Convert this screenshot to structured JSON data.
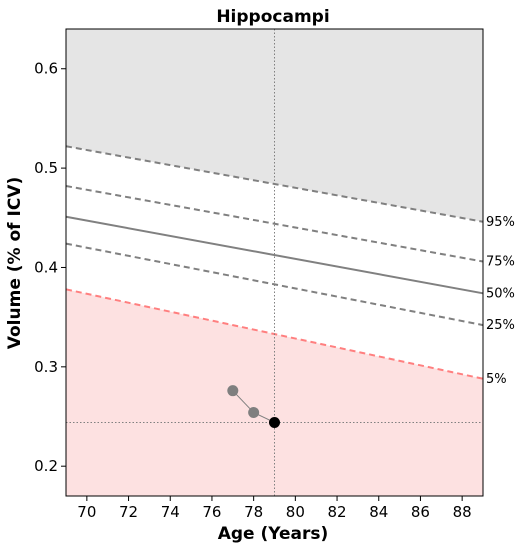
{
  "chart_data": {
    "type": "line",
    "title": "Hippocampi",
    "xlabel": "Age (Years)",
    "ylabel": "Volume (% of ICV)",
    "xlim": [
      69,
      89
    ],
    "ylim": [
      0.17,
      0.64
    ],
    "x_ticks": [
      70,
      72,
      74,
      76,
      78,
      80,
      82,
      84,
      86,
      88
    ],
    "x_tick_labels": [
      "70",
      "72",
      "74",
      "76",
      "78",
      "80",
      "82",
      "84",
      "86",
      "88"
    ],
    "y_ticks": [
      0.2,
      0.3,
      0.4,
      0.5,
      0.6
    ],
    "y_tick_labels": [
      "0.2",
      "0.3",
      "0.4",
      "0.5",
      "0.6"
    ],
    "grid": false,
    "percentile_curves": [
      {
        "name": "95%",
        "x": [
          69,
          89
        ],
        "y": [
          0.522,
          0.446
        ],
        "style": "dashed",
        "color": "#808080"
      },
      {
        "name": "75%",
        "x": [
          69,
          89
        ],
        "y": [
          0.482,
          0.406
        ],
        "style": "dashed",
        "color": "#808080"
      },
      {
        "name": "50%",
        "x": [
          69,
          89
        ],
        "y": [
          0.451,
          0.374
        ],
        "style": "solid",
        "color": "#808080"
      },
      {
        "name": "25%",
        "x": [
          69,
          89
        ],
        "y": [
          0.424,
          0.342
        ],
        "style": "dashed",
        "color": "#808080"
      },
      {
        "name": "5%",
        "x": [
          69,
          89
        ],
        "y": [
          0.378,
          0.288
        ],
        "style": "dashed",
        "color": "#ff7f7f"
      }
    ],
    "series": [
      {
        "x": [
          77,
          78,
          79
        ],
        "y": [
          0.276,
          0.254,
          0.244
        ],
        "colors": [
          "#7f7f7f",
          "#7f7f7f",
          "#000000"
        ]
      }
    ],
    "reference_lines": {
      "x": 79,
      "y": 0.244
    },
    "region_colors": {
      "above_95": "#e5e5e5",
      "below_5": "#fde1e1"
    }
  }
}
